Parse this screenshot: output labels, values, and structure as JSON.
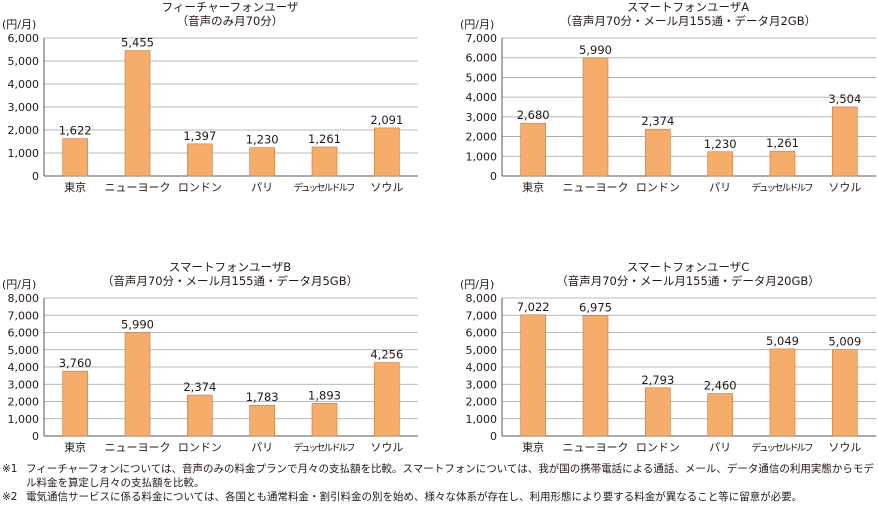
{
  "bar_color": "#f6ad6b",
  "bar_stroke": "#c7783a",
  "grid_color": "#9fa0a0",
  "chart_data": [
    {
      "type": "bar",
      "title": "フィーチャーフォンユーザ",
      "subtitle": "（音声のみ月70分）",
      "ylabel": "(円/月)",
      "ylim": [
        0,
        6000
      ],
      "yticks": [
        "0",
        "1,000",
        "2,000",
        "3,000",
        "4,000",
        "5,000",
        "6,000"
      ],
      "categories": [
        "東京",
        "ニューヨーク",
        "ロンドン",
        "パリ",
        "デュッセルドルフ",
        "ソウル"
      ],
      "values": [
        1622,
        5455,
        1397,
        1230,
        1261,
        2091
      ],
      "labels": [
        "1,622",
        "5,455",
        "1,397",
        "1,230",
        "1,261",
        "2,091"
      ]
    },
    {
      "type": "bar",
      "title": "スマートフォンユーザA",
      "subtitle": "（音声月70分・メール月155通・データ月2GB）",
      "ylabel": "(円/月)",
      "ylim": [
        0,
        7000
      ],
      "yticks": [
        "0",
        "1,000",
        "2,000",
        "3,000",
        "4,000",
        "5,000",
        "6,000",
        "7,000"
      ],
      "categories": [
        "東京",
        "ニューヨーク",
        "ロンドン",
        "パリ",
        "デュッセルドルフ",
        "ソウル"
      ],
      "values": [
        2680,
        5990,
        2374,
        1230,
        1261,
        3504
      ],
      "labels": [
        "2,680",
        "5,990",
        "2,374",
        "1,230",
        "1,261",
        "3,504"
      ]
    },
    {
      "type": "bar",
      "title": "スマートフォンユーザB",
      "subtitle": "（音声月70分・メール月155通・データ月5GB）",
      "ylabel": "(円/月)",
      "ylim": [
        0,
        8000
      ],
      "yticks": [
        "0",
        "1,000",
        "2,000",
        "3,000",
        "4,000",
        "5,000",
        "6,000",
        "7,000",
        "8,000"
      ],
      "categories": [
        "東京",
        "ニューヨーク",
        "ロンドン",
        "パリ",
        "デュッセルドルフ",
        "ソウル"
      ],
      "values": [
        3760,
        5990,
        2374,
        1783,
        1893,
        4256
      ],
      "labels": [
        "3,760",
        "5,990",
        "2,374",
        "1,783",
        "1,893",
        "4,256"
      ]
    },
    {
      "type": "bar",
      "title": "スマートフォンユーザC",
      "subtitle": "（音声月70分・メール月155通・データ月20GB）",
      "ylabel": "(円/月)",
      "ylim": [
        0,
        8000
      ],
      "yticks": [
        "0",
        "1,000",
        "2,000",
        "3,000",
        "4,000",
        "5,000",
        "6,000",
        "7,000",
        "8,000"
      ],
      "categories": [
        "東京",
        "ニューヨーク",
        "ロンドン",
        "パリ",
        "デュッセルドルフ",
        "ソウル"
      ],
      "values": [
        7022,
        6975,
        2793,
        2460,
        5049,
        5009
      ],
      "labels": [
        "7,022",
        "6,975",
        "2,793",
        "2,460",
        "5,049",
        "5,009"
      ]
    }
  ],
  "notes": [
    {
      "mark": "※1",
      "text": "フィーチャーフォンについては、音声のみの料金プランで月々の支払額を比較。スマートフォンについては、我が国の携帯電話による通話、メール、データ通信の利用実態からモデル料金を算定し月々の支払額を比較。"
    },
    {
      "mark": "※2",
      "text": "電気通信サービスに係る料金については、各国とも通常料金・割引料金の別を始め、様々な体系が存在し、利用形態により要する料金が異なること等に留意が必要。"
    }
  ]
}
